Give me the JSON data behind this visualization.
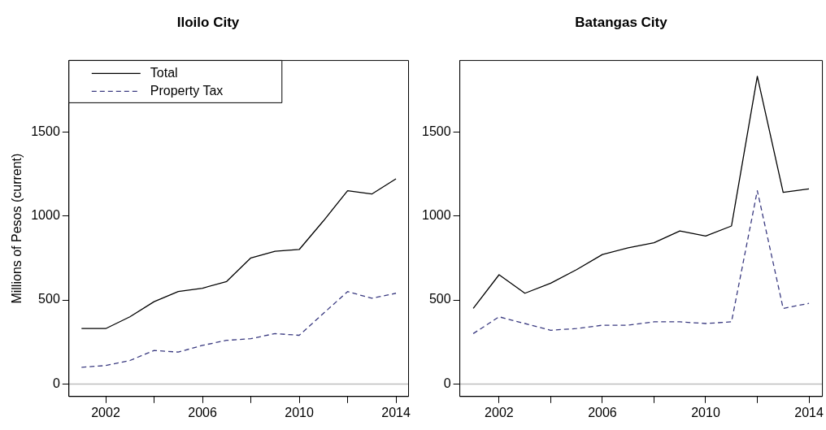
{
  "chart_data": [
    {
      "type": "line",
      "title": "Iloilo City",
      "ylabel": "Millions of Pesos (current)",
      "x": [
        2001,
        2002,
        2003,
        2004,
        2005,
        2006,
        2007,
        2008,
        2009,
        2010,
        2011,
        2012,
        2013,
        2014
      ],
      "series": [
        {
          "name": "Total",
          "color": "#000000",
          "line_style": "solid",
          "values": [
            330,
            330,
            400,
            490,
            550,
            570,
            610,
            750,
            790,
            800,
            970,
            1150,
            1130,
            1220
          ]
        },
        {
          "name": "Property Tax",
          "color": "#3a3a80",
          "line_style": "dashed",
          "values": [
            100,
            110,
            140,
            200,
            190,
            230,
            260,
            270,
            300,
            290,
            420,
            550,
            510,
            540
          ]
        }
      ],
      "xlim": [
        2000.48,
        2014.52
      ],
      "ylim": [
        -74,
        1924
      ],
      "xticks": [
        2002,
        {
          "value": 2004,
          "label": null
        },
        2006,
        {
          "value": 2008,
          "label": null
        },
        2010,
        {
          "value": 2012,
          "label": null
        },
        2014
      ],
      "yticks": [
        0,
        500,
        1000,
        1500
      ],
      "ref_lines": [
        {
          "axis": "y",
          "value": 0,
          "color": "#bebebe"
        }
      ],
      "legend": "top left",
      "grid": false
    },
    {
      "type": "line",
      "title": "Batangas City",
      "x": [
        2001,
        2002,
        2003,
        2004,
        2005,
        2006,
        2007,
        2008,
        2009,
        2010,
        2011,
        2012,
        2013,
        2014
      ],
      "series": [
        {
          "color": "#000000",
          "line_style": "solid",
          "values": [
            450,
            650,
            540,
            600,
            680,
            770,
            810,
            840,
            910,
            880,
            940,
            1830,
            1140,
            1160
          ]
        },
        {
          "color": "#3a3a80",
          "line_style": "dashed",
          "values": [
            300,
            400,
            360,
            320,
            330,
            350,
            350,
            370,
            370,
            360,
            370,
            1150,
            450,
            480
          ]
        }
      ],
      "xlim": [
        2000.48,
        2014.52
      ],
      "ylim": [
        -74,
        1924
      ],
      "xticks": [
        2002,
        {
          "value": 2004,
          "label": null
        },
        2006,
        {
          "value": 2008,
          "label": null
        },
        2010,
        {
          "value": 2012,
          "label": null
        },
        2014
      ],
      "yticks": [
        0,
        500,
        1000,
        1500
      ],
      "ref_lines": [
        {
          "axis": "y",
          "value": 0,
          "color": "#bebebe"
        }
      ],
      "legend": false,
      "grid": false
    }
  ]
}
